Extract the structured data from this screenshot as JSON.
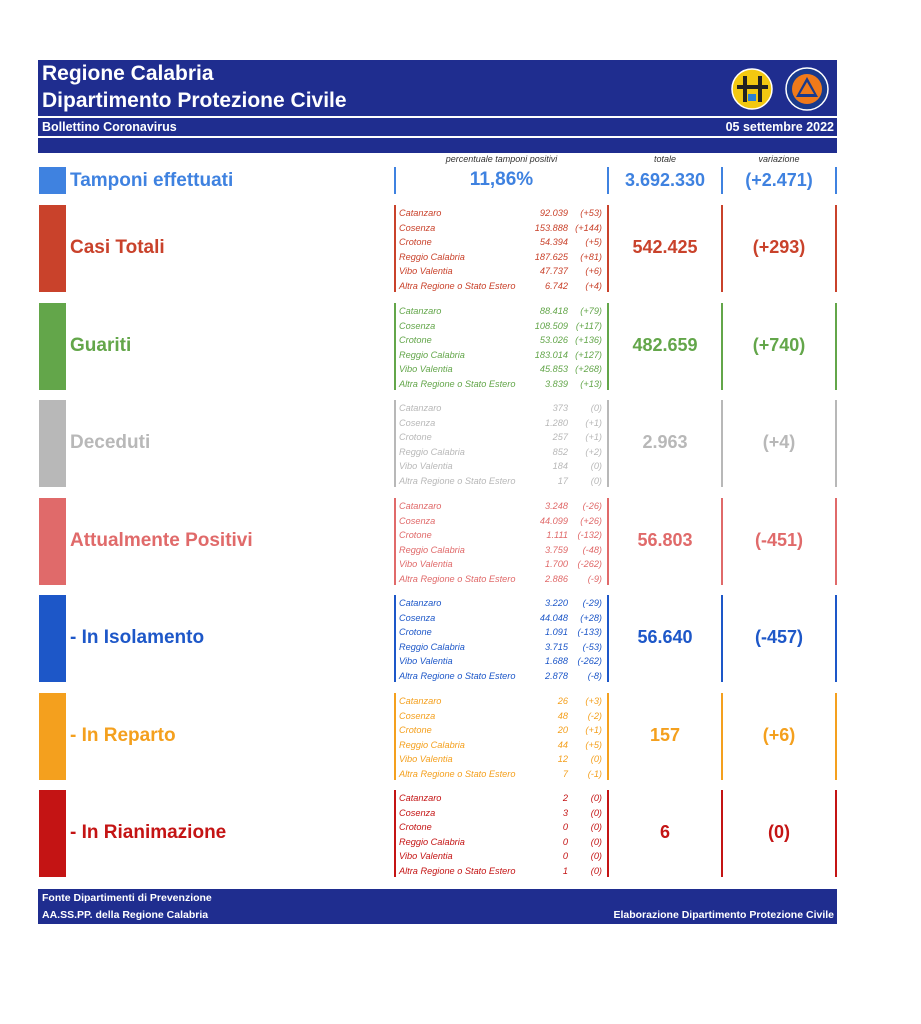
{
  "header": {
    "title_line1": "Regione Calabria",
    "title_line2": "Dipartimento Protezione Civile",
    "bulletin": "Bollettino Coronavirus",
    "date": "05 settembre 2022"
  },
  "columns": {
    "positivity": "percentuale tamponi positivi",
    "total": "totale",
    "variation": "variazione"
  },
  "tamponi": {
    "label": "Tamponi effettuati",
    "percent": "11,86%",
    "total": "3.692.330",
    "variation": "(+2.471)",
    "color": "#3f82e0"
  },
  "rows": [
    {
      "id": "casi-totali",
      "label": "Casi Totali",
      "color": "#c9422b",
      "total": "542.425",
      "variation": "(+293)",
      "entries": [
        {
          "name": "Catanzaro",
          "value": "92.039",
          "var": "(+53)"
        },
        {
          "name": "Cosenza",
          "value": "153.888",
          "var": "(+144)"
        },
        {
          "name": "Crotone",
          "value": "54.394",
          "var": "(+5)"
        },
        {
          "name": "Reggio Calabria",
          "value": "187.625",
          "var": "(+81)"
        },
        {
          "name": "Vibo Valentia",
          "value": "47.737",
          "var": "(+6)"
        },
        {
          "name": "Altra Regione o Stato Estero",
          "value": "6.742",
          "var": "(+4)"
        }
      ]
    },
    {
      "id": "guariti",
      "label": "Guariti",
      "color": "#63a64a",
      "total": "482.659",
      "variation": "(+740)",
      "entries": [
        {
          "name": "Catanzaro",
          "value": "88.418",
          "var": "(+79)"
        },
        {
          "name": "Cosenza",
          "value": "108.509",
          "var": "(+117)"
        },
        {
          "name": "Crotone",
          "value": "53.026",
          "var": "(+136)"
        },
        {
          "name": "Reggio Calabria",
          "value": "183.014",
          "var": "(+127)"
        },
        {
          "name": "Vibo Valentia",
          "value": "45.853",
          "var": "(+268)"
        },
        {
          "name": "Altra Regione o Stato Estero",
          "value": "3.839",
          "var": "(+13)"
        }
      ]
    },
    {
      "id": "deceduti",
      "label": "Deceduti",
      "color": "#b8b8b8",
      "total": "2.963",
      "variation": "(+4)",
      "entries": [
        {
          "name": "Catanzaro",
          "value": "373",
          "var": "(0)"
        },
        {
          "name": "Cosenza",
          "value": "1.280",
          "var": "(+1)"
        },
        {
          "name": "Crotone",
          "value": "257",
          "var": "(+1)"
        },
        {
          "name": "Reggio Calabria",
          "value": "852",
          "var": "(+2)"
        },
        {
          "name": "Vibo Valentia",
          "value": "184",
          "var": "(0)"
        },
        {
          "name": "Altra Regione o Stato Estero",
          "value": "17",
          "var": "(0)"
        }
      ]
    },
    {
      "id": "attualmente-positivi",
      "label": "Attualmente Positivi",
      "color": "#e06a6a",
      "total": "56.803",
      "variation": "(-451)",
      "entries": [
        {
          "name": "Catanzaro",
          "value": "3.248",
          "var": "(-26)"
        },
        {
          "name": "Cosenza",
          "value": "44.099",
          "var": "(+26)"
        },
        {
          "name": "Crotone",
          "value": "1.111",
          "var": "(-132)"
        },
        {
          "name": "Reggio Calabria",
          "value": "3.759",
          "var": "(-48)"
        },
        {
          "name": "Vibo Valentia",
          "value": "1.700",
          "var": "(-262)"
        },
        {
          "name": "Altra Regione o Stato Estero",
          "value": "2.886",
          "var": "(-9)"
        }
      ]
    },
    {
      "id": "in-isolamento",
      "label": " - In Isolamento",
      "color": "#1d57c8",
      "total": "56.640",
      "variation": "(-457)",
      "entries": [
        {
          "name": "Catanzaro",
          "value": "3.220",
          "var": "(-29)"
        },
        {
          "name": "Cosenza",
          "value": "44.048",
          "var": "(+28)"
        },
        {
          "name": "Crotone",
          "value": "1.091",
          "var": "(-133)"
        },
        {
          "name": "Reggio Calabria",
          "value": "3.715",
          "var": "(-53)"
        },
        {
          "name": "Vibo Valentia",
          "value": "1.688",
          "var": "(-262)"
        },
        {
          "name": "Altra Regione o Stato Estero",
          "value": "2.878",
          "var": "(-8)"
        }
      ]
    },
    {
      "id": "in-reparto",
      "label": " - In Reparto",
      "color": "#f4a01e",
      "total": "157",
      "variation": "(+6)",
      "entries": [
        {
          "name": "Catanzaro",
          "value": "26",
          "var": "(+3)"
        },
        {
          "name": "Cosenza",
          "value": "48",
          "var": "(-2)"
        },
        {
          "name": "Crotone",
          "value": "20",
          "var": "(+1)"
        },
        {
          "name": "Reggio Calabria",
          "value": "44",
          "var": "(+5)"
        },
        {
          "name": "Vibo Valentia",
          "value": "12",
          "var": "(0)"
        },
        {
          "name": "Altra Regione o Stato Estero",
          "value": "7",
          "var": "(-1)"
        }
      ]
    },
    {
      "id": "in-rianimazione",
      "label": " - In Rianimazione",
      "color": "#c41414",
      "total": "6",
      "variation": "(0)",
      "entries": [
        {
          "name": "Catanzaro",
          "value": "2",
          "var": "(0)"
        },
        {
          "name": "Cosenza",
          "value": "3",
          "var": "(0)"
        },
        {
          "name": "Crotone",
          "value": "0",
          "var": "(0)"
        },
        {
          "name": "Reggio Calabria",
          "value": "0",
          "var": "(0)"
        },
        {
          "name": "Vibo Valentia",
          "value": "0",
          "var": "(0)"
        },
        {
          "name": "Altra Regione o Stato Estero",
          "value": "1",
          "var": "(0)"
        }
      ]
    }
  ],
  "footer": {
    "source_line1": "Fonte Dipartimenti di Prevenzione",
    "source_line2": "AA.SS.PP.  della Regione Calabria",
    "credit": "Elaborazione Dipartimento Protezione Civile"
  },
  "logos": {
    "region": "regione-calabria-emblem",
    "civil": "protezione-civile-emblem"
  }
}
